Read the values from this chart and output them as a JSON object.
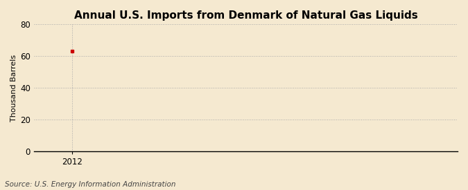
{
  "title": "Annual U.S. Imports from Denmark of Natural Gas Liquids",
  "ylabel": "Thousand Barrels",
  "source_text": "Source: U.S. Energy Information Administration",
  "x_data": [
    2012
  ],
  "y_data": [
    63
  ],
  "point_color": "#cc0000",
  "ylim": [
    0,
    80
  ],
  "yticks": [
    0,
    20,
    40,
    60,
    80
  ],
  "xlim": [
    2011.85,
    2013.5
  ],
  "xticks": [
    2012
  ],
  "background_color": "#f5e9d0",
  "plot_bg_color": "#f5e9d0",
  "grid_color": "#aaaaaa",
  "title_fontsize": 11,
  "label_fontsize": 8,
  "tick_fontsize": 8.5,
  "source_fontsize": 7.5
}
